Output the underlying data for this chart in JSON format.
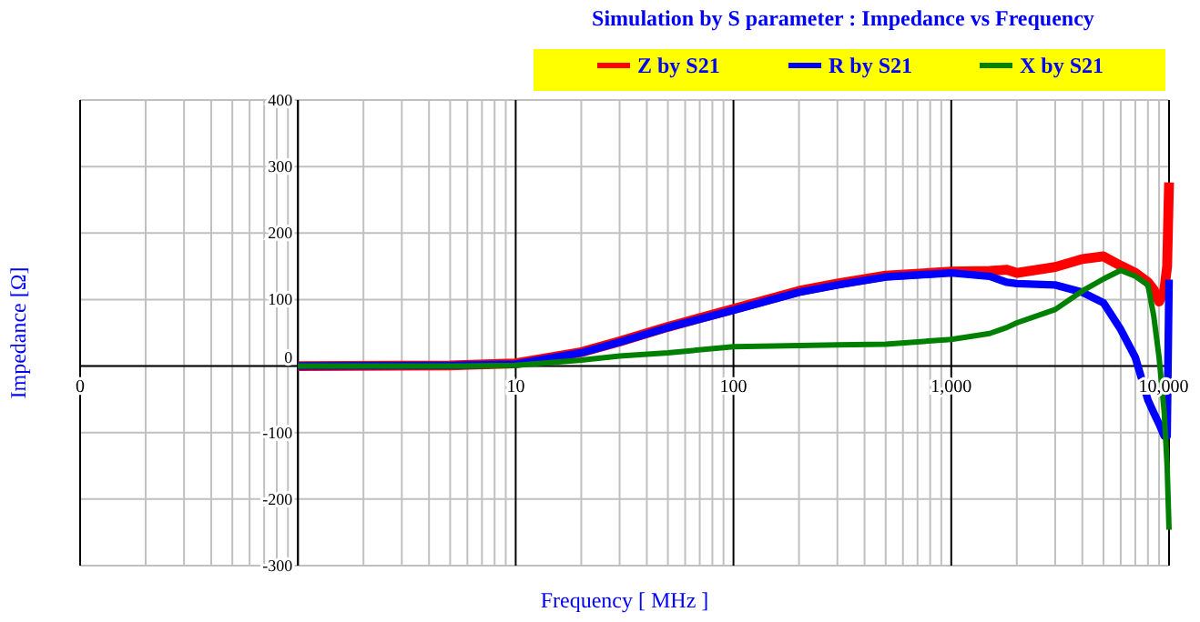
{
  "chart_data": {
    "type": "line",
    "title": "Simulation by S parameter : Impedance vs Frequency",
    "xlabel": "Frequency [ MHz ]",
    "ylabel": "Impedance [Ω]",
    "log": "x",
    "grid": true,
    "legend": "top",
    "line_style": "solid",
    "x": [
      1,
      5,
      10,
      20,
      30,
      50,
      100,
      200,
      300,
      500,
      1000,
      1500,
      1800,
      2000,
      3000,
      4000,
      5000,
      6000,
      7000,
      8000,
      8500,
      9000,
      9500,
      9800,
      10000
    ],
    "xlim": [
      0.1,
      10000
    ],
    "xticks": [
      {
        "value": 0.1,
        "label": "0"
      },
      {
        "value": 1,
        "label": null
      },
      10,
      100,
      {
        "value": 1000,
        "label": "1,000"
      },
      {
        "value": 10000,
        "label": "10,000"
      }
    ],
    "ylim": [
      -300,
      400
    ],
    "yticks": [
      -300,
      -200,
      -100,
      0,
      100,
      200,
      300,
      400
    ],
    "series": [
      {
        "name": "Z by S21",
        "color": "#ff0000",
        "values": [
          0,
          1,
          4,
          21,
          37,
          59,
          86,
          113,
          124,
          136,
          142,
          143,
          145,
          140,
          149,
          161,
          165,
          151,
          140,
          126,
          115,
          97,
          113,
          150,
          276
        ]
      },
      {
        "name": "R by S21",
        "color": "#0000ff",
        "values": [
          0,
          1,
          3,
          20,
          36,
          58,
          84,
          111,
          122,
          134,
          140,
          135,
          126,
          124,
          122,
          111,
          95,
          55,
          13,
          -51,
          -70,
          -87,
          -105,
          -105,
          130
        ]
      },
      {
        "name": "X by S21",
        "color": "#008000",
        "values": [
          0,
          0,
          1,
          9,
          15,
          20,
          29,
          31,
          32,
          33,
          40,
          49,
          58,
          65,
          85,
          113,
          131,
          144,
          135,
          122,
          76,
          13,
          -69,
          -150,
          -246
        ]
      }
    ]
  }
}
